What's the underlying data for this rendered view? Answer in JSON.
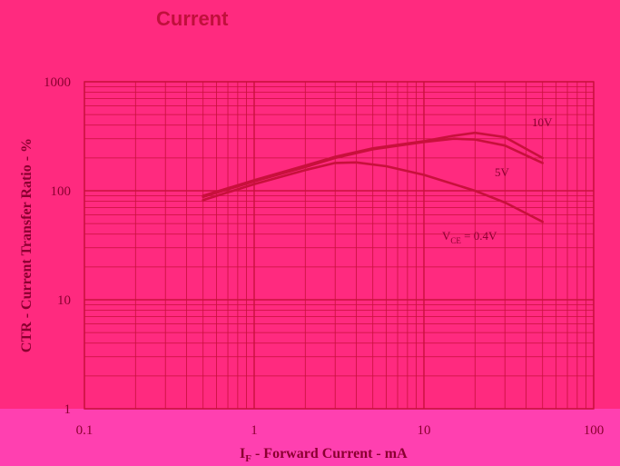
{
  "chart_data": {
    "type": "line",
    "title": "Current",
    "xlabel": "IF - Forward Current - mA",
    "xlabel_main": "I",
    "xlabel_sub": "F",
    "xlabel_rest": " - Forward Current - mA",
    "ylabel": "CTR - Current Transfer Ratio - %",
    "xscale": "log",
    "yscale": "log",
    "xlim": [
      0.1,
      100
    ],
    "ylim": [
      1,
      1000
    ],
    "x_tick_labels": [
      "0.1",
      "1",
      "10",
      "100"
    ],
    "y_tick_labels": [
      "1",
      "10",
      "100",
      "1000"
    ],
    "grid": true,
    "legend": "none",
    "series": [
      {
        "label": "10V",
        "color": "#c8103c",
        "points": [
          [
            0.5,
            90
          ],
          [
            1,
            125
          ],
          [
            2,
            170
          ],
          [
            3,
            205
          ],
          [
            5,
            245
          ],
          [
            10,
            285
          ],
          [
            15,
            320
          ],
          [
            20,
            340
          ],
          [
            30,
            310
          ],
          [
            50,
            200
          ]
        ]
      },
      {
        "label": "5V",
        "color": "#c8103c",
        "points": [
          [
            0.5,
            88
          ],
          [
            1,
            122
          ],
          [
            2,
            165
          ],
          [
            3,
            200
          ],
          [
            5,
            240
          ],
          [
            10,
            280
          ],
          [
            15,
            300
          ],
          [
            20,
            295
          ],
          [
            30,
            260
          ],
          [
            50,
            180
          ]
        ]
      },
      {
        "label": "VCE = 0.4V",
        "label_main": "V",
        "label_sub": "CE",
        "label_rest": " = 0.4V",
        "color": "#c8103c",
        "points": [
          [
            0.5,
            82
          ],
          [
            1,
            115
          ],
          [
            2,
            155
          ],
          [
            3,
            180
          ],
          [
            4,
            182
          ],
          [
            6,
            168
          ],
          [
            10,
            140
          ],
          [
            20,
            100
          ],
          [
            30,
            78
          ],
          [
            50,
            52
          ]
        ]
      }
    ]
  }
}
